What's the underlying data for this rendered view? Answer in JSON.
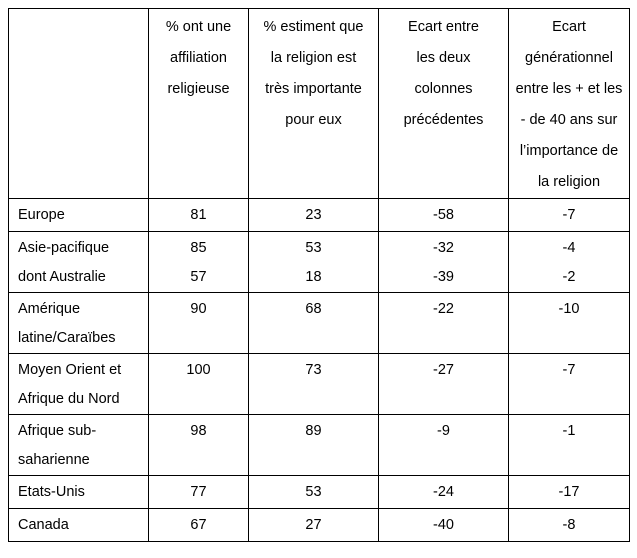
{
  "colors": {
    "border": "#000000",
    "background": "#ffffff",
    "text": "#000000"
  },
  "table": {
    "header": {
      "region": "",
      "affiliation": "% ont une\naffiliation\nreligieuse",
      "importance": "% estiment que\nla religion est\ntrès importante\npour eux",
      "gap": "Ecart entre\nles deux\ncolonnes\nprécédentes",
      "generation_gap": "Ecart\ngénérationnel\nentre les + et les\n- de 40 ans sur\nl’importance de\nla religion"
    },
    "rows": [
      {
        "region": "Europe",
        "affiliation": "81",
        "importance": "23",
        "gap": "-58",
        "generation_gap": "-7"
      },
      {
        "region": "Asie-pacifique\ndont Australie",
        "affiliation": "85\n57",
        "importance": "53\n18",
        "gap": "-32\n-39",
        "generation_gap": "-4\n-2"
      },
      {
        "region": "Amérique\nlatine/Caraïbes",
        "affiliation": "90",
        "importance": "68",
        "gap": "-22",
        "generation_gap": "-10"
      },
      {
        "region": "Moyen Orient et\nAfrique du Nord",
        "affiliation": "100",
        "importance": "73",
        "gap": "-27",
        "generation_gap": "-7"
      },
      {
        "region": "Afrique sub-\nsaharienne",
        "affiliation": "98",
        "importance": "89",
        "gap": "-9",
        "generation_gap": "-1"
      },
      {
        "region": "Etats-Unis",
        "affiliation": "77",
        "importance": "53",
        "gap": "-24",
        "generation_gap": "-17"
      },
      {
        "region": "Canada",
        "affiliation": "67",
        "importance": "27",
        "gap": "-40",
        "generation_gap": "-8"
      }
    ]
  }
}
